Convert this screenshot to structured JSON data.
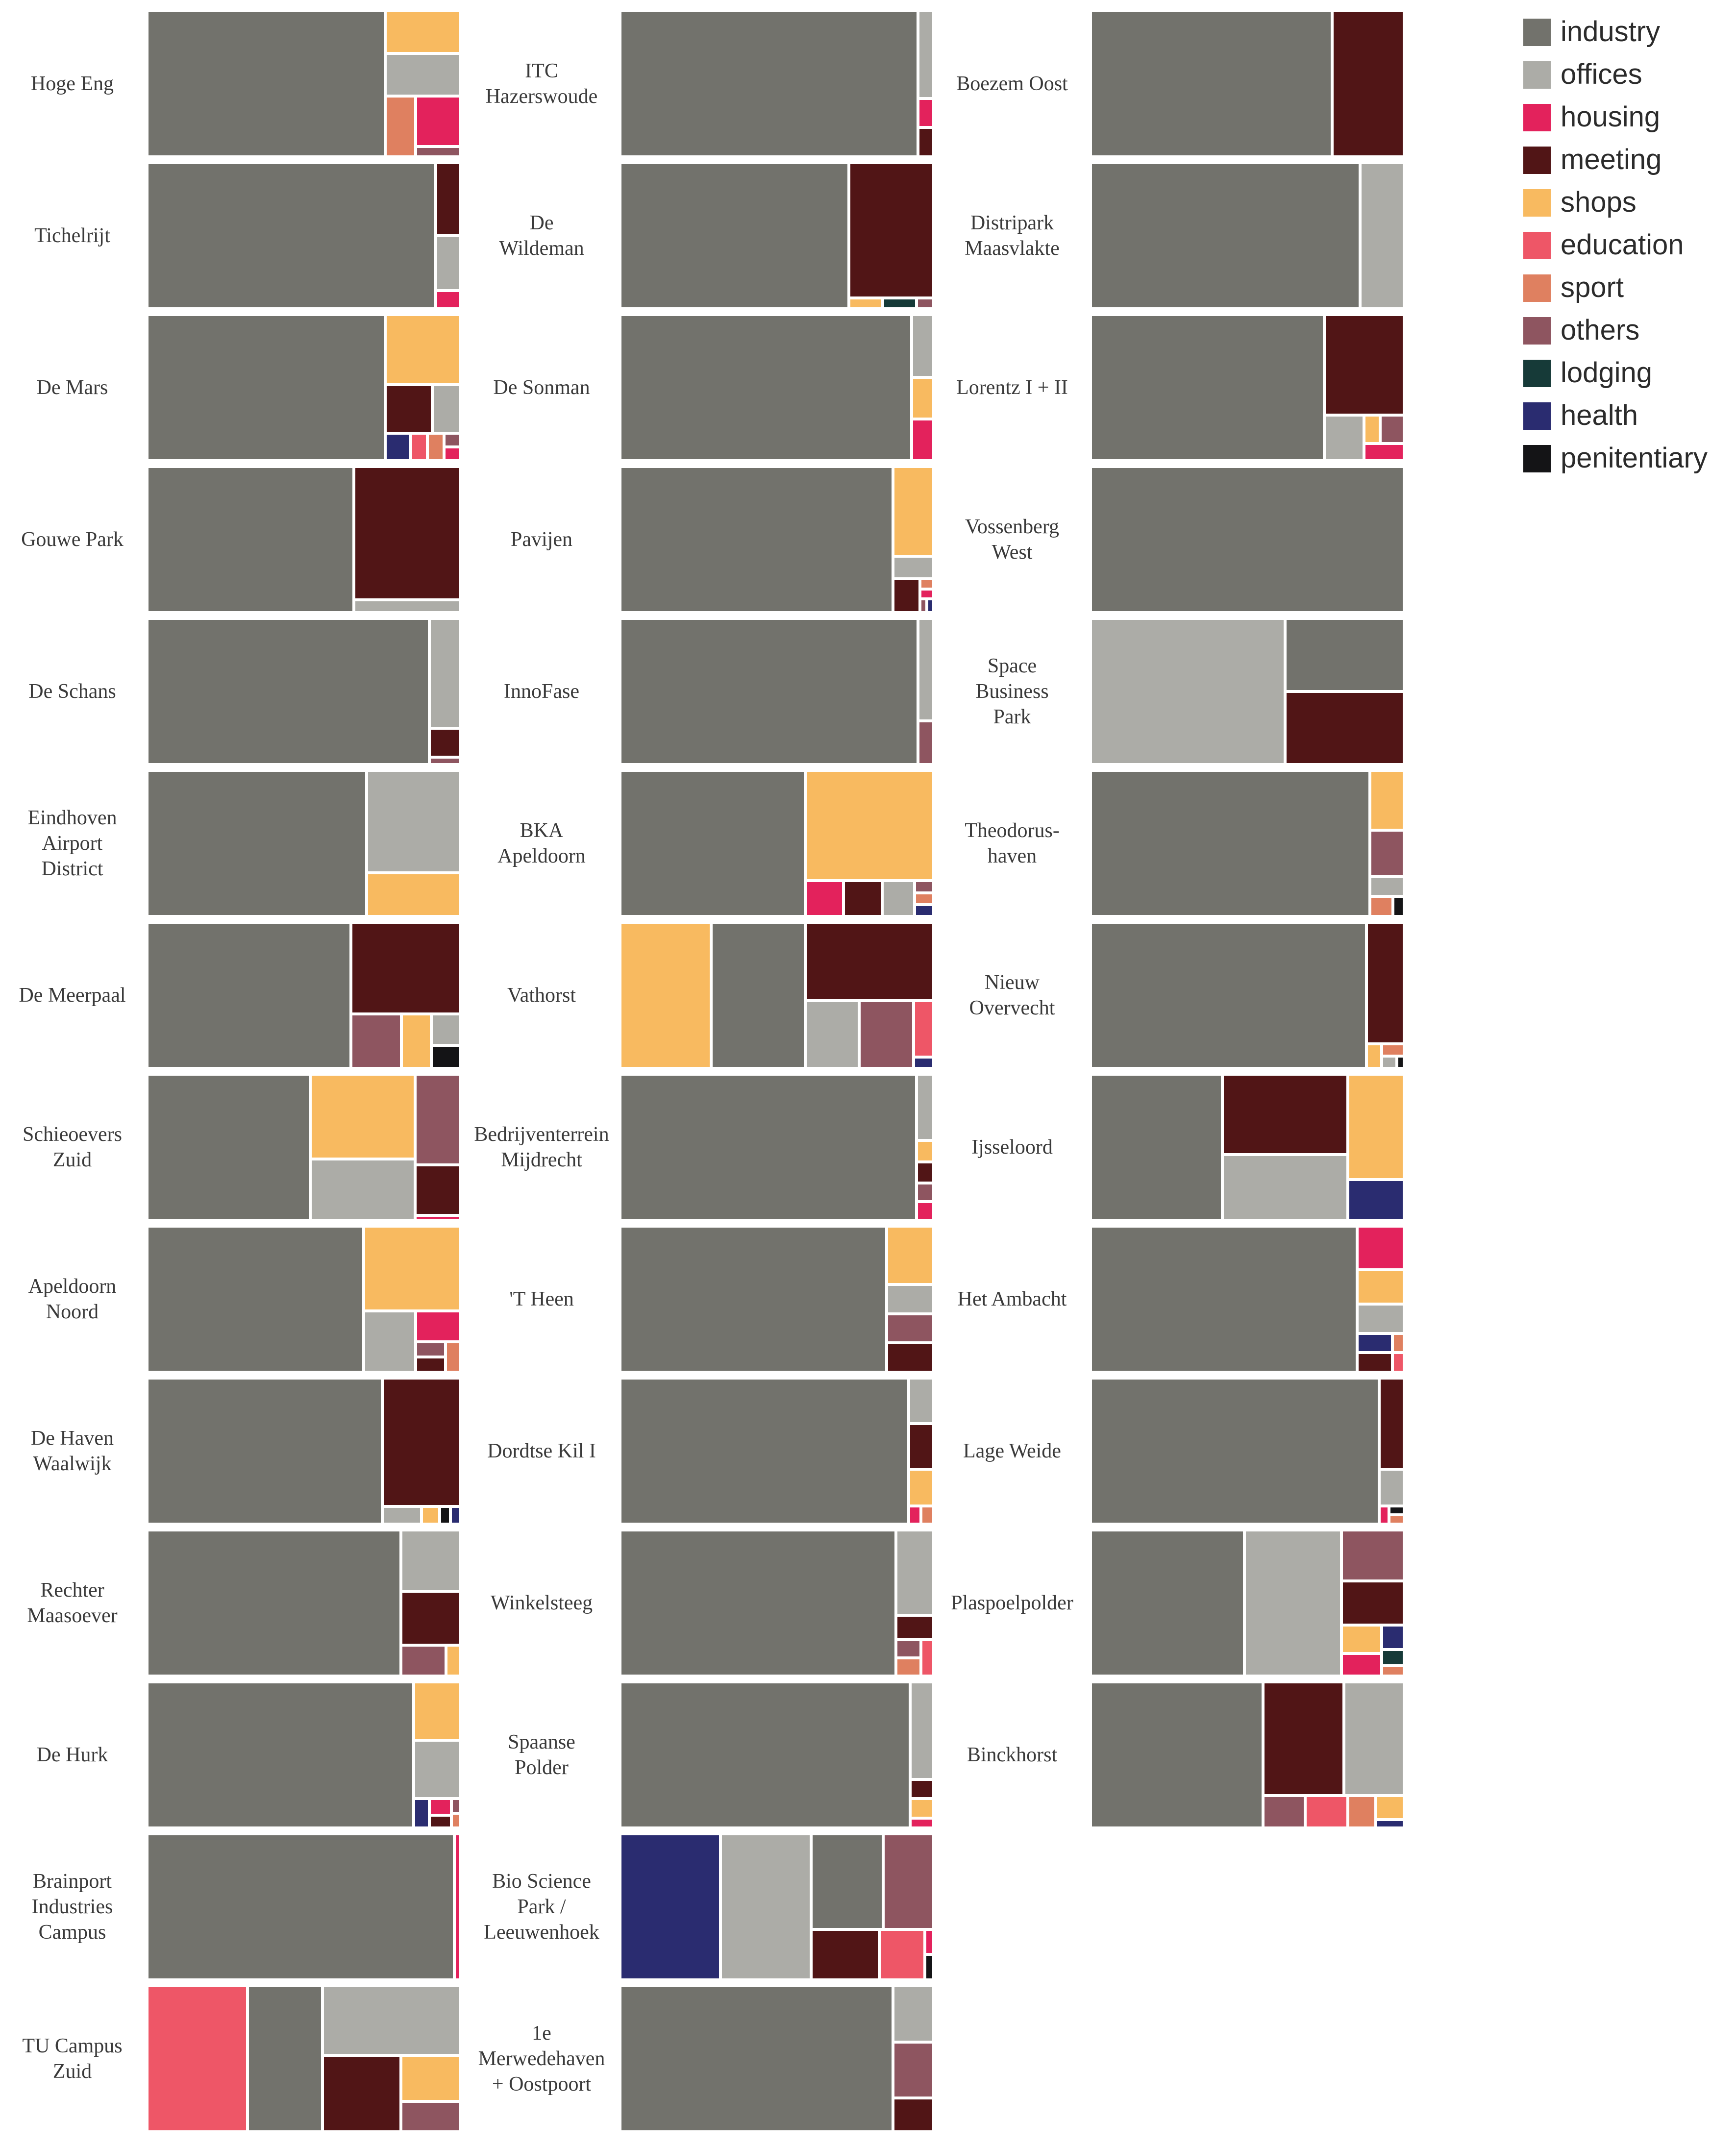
{
  "chart_data": {
    "type": "treemap",
    "legend_position": "top-right",
    "categories": [
      {
        "key": "industry",
        "label": "industry",
        "color": "#72726c"
      },
      {
        "key": "offices",
        "label": "offices",
        "color": "#acaca7"
      },
      {
        "key": "housing",
        "label": "housing",
        "color": "#e3225c"
      },
      {
        "key": "meeting",
        "label": "meeting",
        "color": "#511516"
      },
      {
        "key": "shops",
        "label": "shops",
        "color": "#f8ba60"
      },
      {
        "key": "education",
        "label": "education",
        "color": "#ee5667"
      },
      {
        "key": "sport",
        "label": "sport",
        "color": "#df8060"
      },
      {
        "key": "others",
        "label": "others",
        "color": "#8e5560"
      },
      {
        "key": "lodging",
        "label": "lodging",
        "color": "#163a38"
      },
      {
        "key": "health",
        "label": "health",
        "color": "#2a2c70"
      },
      {
        "key": "penitentiary",
        "label": "penitentiary",
        "color": "#141416"
      }
    ],
    "panels": [
      {
        "name": "Hoge Eng",
        "values": {
          "industry": 76,
          "shops": 7,
          "offices": 7,
          "sport": 4,
          "housing": 5,
          "others": 1
        }
      },
      {
        "name": "Tichelrijt",
        "values": {
          "industry": 92,
          "meeting": 4,
          "offices": 3,
          "housing": 1
        }
      },
      {
        "name": "De Mars",
        "values": {
          "industry": 76,
          "shops": 11.5,
          "meeting": 5,
          "offices": 3,
          "health": 1.5,
          "education": 1,
          "sport": 1,
          "others": 0.5,
          "housing": 0.5
        }
      },
      {
        "name": "Gouwe Park",
        "values": {
          "industry": 66,
          "meeting": 31,
          "offices": 3
        }
      },
      {
        "name": "De Schans",
        "values": {
          "industry": 90,
          "offices": 7.5,
          "meeting": 2,
          "others": 0.5
        }
      },
      {
        "name": "Eindhoven Airport District",
        "values": {
          "industry": 70,
          "offices": 21,
          "shops": 9
        }
      },
      {
        "name": "De Meerpaal",
        "values": {
          "industry": 65,
          "meeting": 22,
          "others": 6,
          "shops": 3.5,
          "offices": 2,
          "penitentiary": 1.5
        }
      },
      {
        "name": "Schieoevers Zuid",
        "values": {
          "industry": 52,
          "shops": 19.5,
          "offices": 14,
          "others": 9,
          "meeting": 5,
          "housing": 0.5
        }
      },
      {
        "name": "Apeldoorn Noord",
        "values": {
          "industry": 69,
          "shops": 18,
          "offices": 7,
          "housing": 3,
          "others": 1,
          "meeting": 1,
          "sport": 1
        }
      },
      {
        "name": "De Haven Waalwijk",
        "values": {
          "industry": 75,
          "meeting": 22,
          "offices": 1.5,
          "shops": 0.7,
          "penitentiary": 0.4,
          "health": 0.4
        }
      },
      {
        "name": "Rechter Maasoever",
        "values": {
          "industry": 81,
          "offices": 8,
          "meeting": 7,
          "others": 3,
          "shops": 1
        }
      },
      {
        "name": "De Hurk",
        "values": {
          "industry": 85,
          "shops": 6,
          "offices": 6,
          "health": 1,
          "housing": 0.8,
          "meeting": 0.6,
          "others": 0.3,
          "sport": 0.3
        }
      },
      {
        "name": "Brainport Industries Campus",
        "values": {
          "industry": 98,
          "housing": 2
        }
      },
      {
        "name": "TU Campus Zuid",
        "values": {
          "education": 32,
          "industry": 24,
          "offices": 21,
          "meeting": 13,
          "shops": 6,
          "others": 4
        }
      },
      {
        "name": "ITC Hazerswoude",
        "values": {
          "industry": 95,
          "offices": 3,
          "housing": 1,
          "meeting": 1
        }
      },
      {
        "name": "De Wildeman",
        "values": {
          "industry": 73,
          "meeting": 25,
          "shops": 0.8,
          "lodging": 0.8,
          "others": 0.4
        }
      },
      {
        "name": "De Sonman",
        "values": {
          "industry": 93,
          "offices": 3,
          "shops": 2,
          "housing": 2
        }
      },
      {
        "name": "Pavijen",
        "values": {
          "industry": 87,
          "shops": 8,
          "offices": 2,
          "meeting": 2,
          "sport": 0.3,
          "housing": 0.3,
          "others": 0.2,
          "health": 0.2
        }
      },
      {
        "name": "InnoFase",
        "values": {
          "industry": 95,
          "offices": 3.5,
          "others": 1.5
        }
      },
      {
        "name": "BKA Apeldoorn",
        "values": {
          "industry": 59,
          "shops": 31,
          "housing": 3,
          "meeting": 3,
          "offices": 2.5,
          "others": 0.5,
          "sport": 0.5,
          "health": 0.5
        }
      },
      {
        "name": "Vathorst",
        "values": {
          "shops": 29,
          "industry": 30,
          "meeting": 22,
          "offices": 8,
          "others": 8,
          "education": 2.5,
          "health": 0.5
        }
      },
      {
        "name": "Bedrijventerrein Mijdrecht",
        "values": {
          "industry": 94.5,
          "offices": 2.5,
          "shops": 0.8,
          "meeting": 0.8,
          "others": 0.7,
          "housing": 0.7
        }
      },
      {
        "name": "'T Heen",
        "values": {
          "industry": 85,
          "shops": 6,
          "offices": 3,
          "others": 3,
          "meeting": 3
        }
      },
      {
        "name": "Dordtse Kil I",
        "values": {
          "industry": 92,
          "offices": 2.5,
          "meeting": 2.5,
          "shops": 2,
          "housing": 0.5,
          "sport": 0.5
        }
      },
      {
        "name": "Winkelsteeg",
        "values": {
          "industry": 88,
          "offices": 7,
          "meeting": 2,
          "others": 1,
          "sport": 1,
          "education": 1
        }
      },
      {
        "name": "Spaanse Polder",
        "values": {
          "industry": 92.5,
          "offices": 5,
          "meeting": 1,
          "shops": 1,
          "housing": 0.5
        }
      },
      {
        "name": "Bio Science Park / Leeuwenhoek",
        "values": {
          "health": 32,
          "offices": 29,
          "industry": 15,
          "others": 10.5,
          "meeting": 7.5,
          "education": 5,
          "housing": 0.5,
          "penitentiary": 0.5
        }
      },
      {
        "name": "1e Merwedehaven + Oostpoort",
        "values": {
          "industry": 87,
          "offices": 5,
          "others": 5,
          "meeting": 3
        }
      },
      {
        "name": "Boezem Oost",
        "values": {
          "industry": 77,
          "meeting": 23
        }
      },
      {
        "name": "Distripark Maasvlakte",
        "values": {
          "industry": 86,
          "offices": 14
        }
      },
      {
        "name": "Lorentz I + II",
        "values": {
          "industry": 74.5,
          "meeting": 17.5,
          "offices": 4,
          "shops": 1,
          "others": 1.5,
          "housing": 1.5
        }
      },
      {
        "name": "Vossenberg West",
        "values": {
          "industry": 100
        }
      },
      {
        "name": "Space Business Park",
        "values": {
          "offices": 62,
          "industry": 19,
          "meeting": 19
        }
      },
      {
        "name": "Theodorus-haven",
        "values": {
          "industry": 89,
          "shops": 4.5,
          "others": 3.5,
          "offices": 1.5,
          "sport": 1,
          "penitentiary": 0.5
        }
      },
      {
        "name": "Nieuw Overvecht",
        "values": {
          "industry": 88,
          "meeting": 10,
          "shops": 0.8,
          "sport": 0.6,
          "offices": 0.4,
          "penitentiary": 0.2
        }
      },
      {
        "name": "Ijsseloord",
        "values": {
          "industry": 42,
          "meeting": 22,
          "offices": 18,
          "shops": 13,
          "health": 5
        }
      },
      {
        "name": "Het Ambacht",
        "values": {
          "industry": 85,
          "housing": 4.5,
          "shops": 3.5,
          "offices": 3,
          "health": 1.5,
          "meeting": 1.5,
          "sport": 0.5,
          "education": 0.5
        }
      },
      {
        "name": "Lage Weide",
        "values": {
          "industry": 92,
          "meeting": 5,
          "offices": 2,
          "housing": 0.4,
          "penitentiary": 0.3,
          "sport": 0.3
        }
      },
      {
        "name": "Plaspoelpolder",
        "values": {
          "industry": 49,
          "offices": 31,
          "others": 7,
          "meeting": 6,
          "shops": 2.5,
          "housing": 2,
          "health": 1.2,
          "lodging": 0.8,
          "sport": 0.5
        }
      },
      {
        "name": "Binckhorst",
        "values": {
          "industry": 55,
          "meeting": 20,
          "offices": 15,
          "others": 3,
          "education": 3,
          "sport": 2,
          "shops": 1.5,
          "health": 0.5
        }
      }
    ]
  }
}
